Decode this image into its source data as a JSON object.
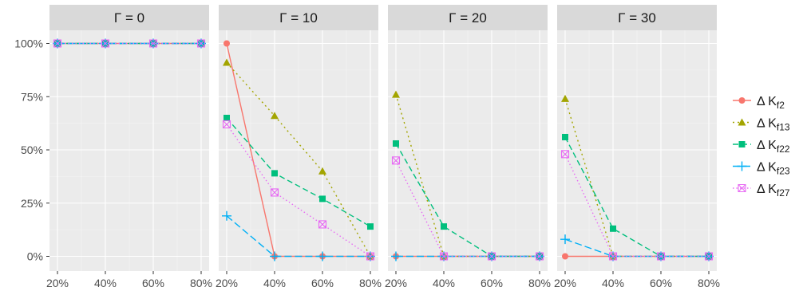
{
  "chart_data": {
    "type": "line",
    "facet_label_prefix": "Γ = ",
    "facets": [
      {
        "label": "Γ = 0",
        "gamma": "0"
      },
      {
        "label": "Γ = 10",
        "gamma": "10"
      },
      {
        "label": "Γ = 20",
        "gamma": "20"
      },
      {
        "label": "Γ = 30",
        "gamma": "30"
      }
    ],
    "x_categories": [
      "20%",
      "40%",
      "60%",
      "80%"
    ],
    "y_ticks": [
      "0%",
      "25%",
      "50%",
      "75%",
      "100%"
    ],
    "ylim": [
      0,
      1
    ],
    "grid": true,
    "legend_position": "right",
    "series": [
      {
        "name": "Δ K_f2",
        "label_main": "Δ K",
        "label_sub": "f2",
        "color": "#F8766D",
        "marker": "circle",
        "dash": "solid",
        "values": [
          [
            1,
            1,
            1,
            1
          ],
          [
            1,
            0,
            0,
            0
          ],
          [
            0,
            0,
            0,
            0
          ],
          [
            0,
            0,
            0,
            0
          ]
        ]
      },
      {
        "name": "Δ K_f13",
        "label_main": "Δ K",
        "label_sub": "f13",
        "color": "#A3A500",
        "marker": "triangle",
        "dash": "dotted",
        "values": [
          [
            1,
            1,
            1,
            1
          ],
          [
            0.91,
            0.66,
            0.4,
            0
          ],
          [
            0.76,
            0,
            0,
            0
          ],
          [
            0.74,
            0,
            0,
            0
          ]
        ]
      },
      {
        "name": "Δ K_f22",
        "label_main": "Δ K",
        "label_sub": "f22",
        "color": "#00BF7D",
        "marker": "square",
        "dash": "dashed",
        "values": [
          [
            1,
            1,
            1,
            1
          ],
          [
            0.65,
            0.39,
            0.27,
            0.14
          ],
          [
            0.53,
            0.14,
            0,
            0
          ],
          [
            0.56,
            0.13,
            0,
            0
          ]
        ]
      },
      {
        "name": "Δ K_f23",
        "label_main": "Δ K",
        "label_sub": "f23",
        "color": "#00B0F6",
        "marker": "plus",
        "dash": "longdash",
        "values": [
          [
            1,
            1,
            1,
            1
          ],
          [
            0.19,
            0,
            0,
            0
          ],
          [
            0,
            0,
            0,
            0
          ],
          [
            0.08,
            0,
            0,
            0
          ]
        ]
      },
      {
        "name": "Δ K_f27",
        "label_main": "Δ K",
        "label_sub": "f27",
        "color": "#E76BF3",
        "marker": "boxx",
        "dash": "dotted-fine",
        "values": [
          [
            1,
            1,
            1,
            1
          ],
          [
            0.62,
            0.3,
            0.15,
            0
          ],
          [
            0.45,
            0,
            0,
            0
          ],
          [
            0.48,
            0,
            0,
            0
          ]
        ]
      }
    ]
  }
}
